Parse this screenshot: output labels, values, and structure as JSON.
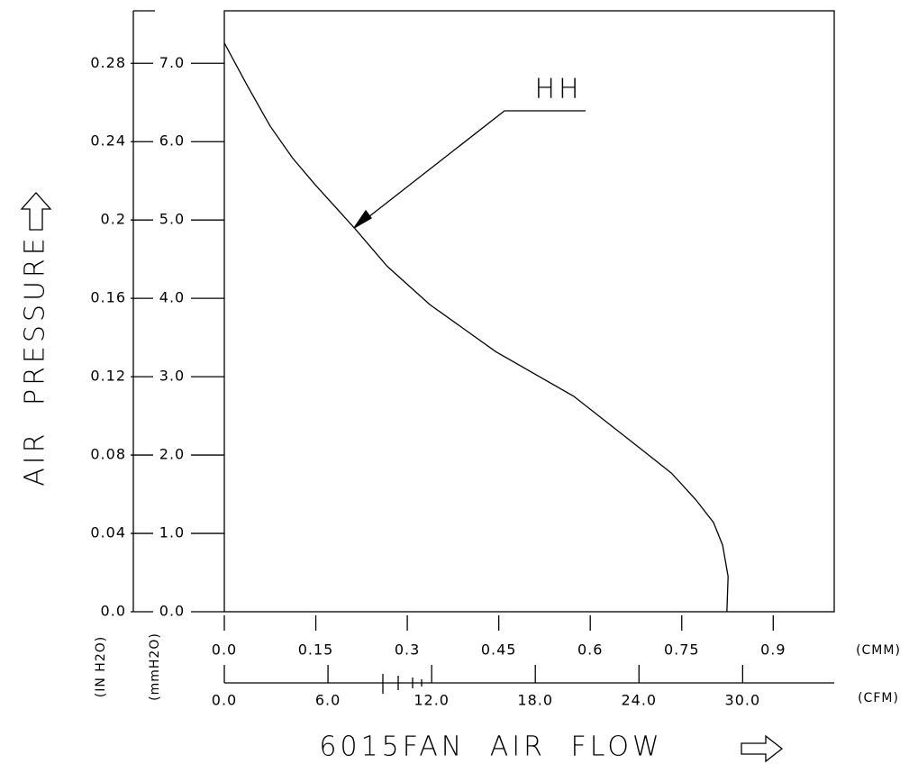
{
  "chart_data": {
    "type": "line",
    "title": "6015FAN AIR FLOW",
    "y_label": "AIR PRESSURE",
    "y_unit_label": "(mmH2O)",
    "y2_label": "(IN H2O)",
    "x_label": "(CMM)",
    "x2_label": "(CFM)",
    "x": [
      0,
      0.038,
      0.075,
      0.112,
      0.149,
      0.213,
      0.267,
      0.337,
      0.445,
      0.573,
      0.681,
      0.733,
      0.773,
      0.802,
      0.817,
      0.826,
      0.824
    ],
    "series": [
      {
        "name": "HH",
        "color": "#000000",
        "values": [
          7.26,
          6.71,
          6.2,
          5.79,
          5.45,
          4.9,
          4.41,
          3.92,
          3.32,
          2.75,
          2.09,
          1.77,
          1.43,
          1.14,
          0.85,
          0.45,
          0
        ]
      }
    ],
    "xlim": [
      0,
      1.0
    ],
    "xticks": [
      {
        "value": 0,
        "label": "0.0"
      },
      0.15,
      0.3,
      0.45,
      0.6,
      0.75,
      0.9
    ],
    "x2lim": [
      0,
      35.3
    ],
    "x2ticks": [
      {
        "value": 0,
        "label": "0.0"
      },
      {
        "value": 6,
        "label": "6.0"
      },
      {
        "value": 12,
        "label": "12.0"
      },
      {
        "value": 18,
        "label": "18.0"
      },
      {
        "value": 24,
        "label": "24.0"
      },
      {
        "value": 30,
        "label": "30.0"
      }
    ],
    "ylim": [
      0,
      7.67
    ],
    "yticks": [
      {
        "value": 0,
        "label": "0.0"
      },
      {
        "value": 1,
        "label": "1.0"
      },
      {
        "value": 2,
        "label": "2.0"
      },
      {
        "value": 3,
        "label": "3.0"
      },
      {
        "value": 4,
        "label": "4.0"
      },
      {
        "value": 5,
        "label": "5.0"
      },
      {
        "value": 6,
        "label": "6.0"
      },
      {
        "value": 7,
        "label": "7.0"
      }
    ],
    "y2lim": [
      0,
      0.3068
    ],
    "y2ticks": [
      {
        "value": 0,
        "label": "0.0"
      },
      0.04,
      0.08,
      0.12,
      0.16,
      0.2,
      0.24,
      0.28
    ]
  }
}
